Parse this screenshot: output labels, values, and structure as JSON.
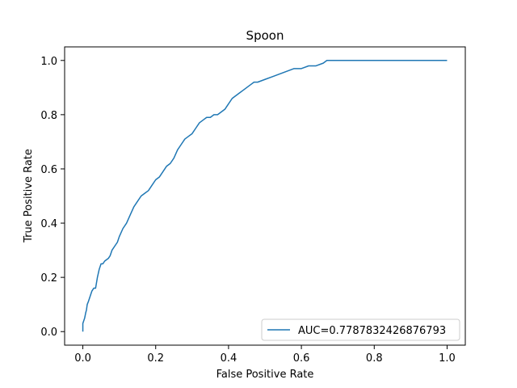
{
  "chart_data": {
    "type": "line",
    "title": "Spoon",
    "xlabel": "False Positive Rate",
    "ylabel": "True Positive Rate",
    "xlim": [
      -0.05,
      1.05
    ],
    "ylim": [
      -0.05,
      1.05
    ],
    "xticks": [
      0.0,
      0.2,
      0.4,
      0.6,
      0.8,
      1.0
    ],
    "yticks": [
      0.0,
      0.2,
      0.4,
      0.6,
      0.8,
      1.0
    ],
    "xtick_labels": [
      "0.0",
      "0.2",
      "0.4",
      "0.6",
      "0.8",
      "1.0"
    ],
    "ytick_labels": [
      "0.0",
      "0.2",
      "0.4",
      "0.6",
      "0.8",
      "1.0"
    ],
    "grid": false,
    "legend_position": "lower-right",
    "series": [
      {
        "name": "AUC=0.7787832426876793",
        "color": "#1f77b4",
        "x": [
          0.0,
          0.0,
          0.005,
          0.008,
          0.01,
          0.012,
          0.015,
          0.02,
          0.025,
          0.03,
          0.035,
          0.04,
          0.045,
          0.05,
          0.055,
          0.06,
          0.07,
          0.075,
          0.08,
          0.09,
          0.095,
          0.1,
          0.11,
          0.12,
          0.13,
          0.14,
          0.15,
          0.16,
          0.17,
          0.18,
          0.19,
          0.2,
          0.21,
          0.22,
          0.23,
          0.24,
          0.25,
          0.26,
          0.27,
          0.28,
          0.29,
          0.3,
          0.31,
          0.32,
          0.33,
          0.34,
          0.35,
          0.36,
          0.37,
          0.38,
          0.39,
          0.4,
          0.41,
          0.42,
          0.43,
          0.44,
          0.45,
          0.46,
          0.47,
          0.48,
          0.5,
          0.52,
          0.54,
          0.56,
          0.58,
          0.6,
          0.62,
          0.64,
          0.66,
          0.67,
          0.68,
          0.7,
          0.75,
          0.8,
          0.9,
          1.0
        ],
        "y": [
          0.0,
          0.03,
          0.05,
          0.07,
          0.08,
          0.1,
          0.11,
          0.13,
          0.15,
          0.16,
          0.16,
          0.2,
          0.23,
          0.25,
          0.25,
          0.26,
          0.27,
          0.28,
          0.3,
          0.32,
          0.33,
          0.35,
          0.38,
          0.4,
          0.43,
          0.46,
          0.48,
          0.5,
          0.51,
          0.52,
          0.54,
          0.56,
          0.57,
          0.59,
          0.61,
          0.62,
          0.64,
          0.67,
          0.69,
          0.71,
          0.72,
          0.73,
          0.75,
          0.77,
          0.78,
          0.79,
          0.79,
          0.8,
          0.8,
          0.81,
          0.82,
          0.84,
          0.86,
          0.87,
          0.88,
          0.89,
          0.9,
          0.91,
          0.92,
          0.92,
          0.93,
          0.94,
          0.95,
          0.96,
          0.97,
          0.97,
          0.98,
          0.98,
          0.99,
          1.0,
          1.0,
          1.0,
          1.0,
          1.0,
          1.0,
          1.0
        ]
      }
    ]
  }
}
